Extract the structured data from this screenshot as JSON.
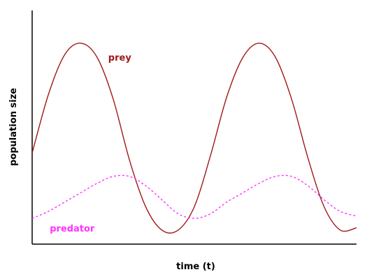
{
  "chart_data": {
    "type": "line",
    "title": "",
    "xlabel": "time (t)",
    "ylabel": "population size",
    "xlim": [
      0,
      100
    ],
    "ylim": [
      0,
      100
    ],
    "grid": false,
    "legend": "inline",
    "x": [
      0,
      5,
      10,
      15,
      20,
      25,
      30,
      35,
      40,
      45,
      50,
      55,
      60,
      65,
      70,
      75,
      80,
      85,
      90,
      95,
      100
    ],
    "series": [
      {
        "name": "prey",
        "color": "#a01818",
        "style": "solid",
        "values": [
          39,
          64,
          81,
          86,
          80,
          62,
          36,
          16,
          6,
          6,
          16,
          38,
          63,
          80,
          86,
          80,
          62,
          37,
          16,
          6,
          7
        ]
      },
      {
        "name": "predator",
        "color": "#ff33ff",
        "style": "dashed",
        "values": [
          11,
          14,
          18,
          22,
          26,
          29,
          29,
          25,
          19,
          13,
          11,
          13,
          18,
          22,
          26,
          29,
          29,
          25,
          19,
          14,
          12
        ]
      }
    ],
    "annotations": [
      {
        "text": "prey",
        "series": "prey",
        "x": 20,
        "y": 80
      },
      {
        "text": "predator",
        "series": "predator",
        "x": 5,
        "y": 11
      }
    ]
  }
}
